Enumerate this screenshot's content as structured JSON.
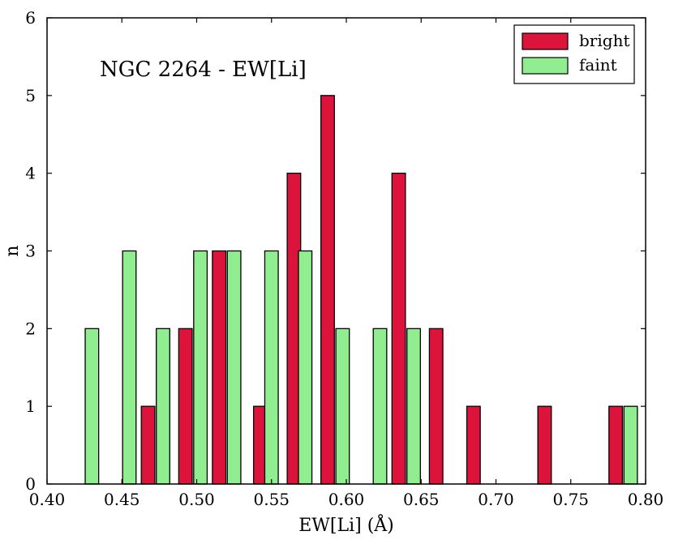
{
  "chart_data": {
    "type": "bar",
    "annotation": "NGC 2264 - EW[Li]",
    "xlabel": "EW[Li] (Å)",
    "ylabel": "n",
    "xlim": [
      0.4,
      0.8
    ],
    "ylim": [
      0,
      6
    ],
    "xticks": [
      "0.40",
      "0.45",
      "0.50",
      "0.55",
      "0.60",
      "0.65",
      "0.70",
      "0.75",
      "0.80"
    ],
    "yticks": [
      "0",
      "1",
      "2",
      "3",
      "4",
      "5",
      "6"
    ],
    "grid": false,
    "legend_position": "top-right",
    "bin_width": 0.025,
    "series": [
      {
        "name": "bright",
        "color": "#dc143c",
        "bars": [
          {
            "x": 0.4675,
            "value": 1
          },
          {
            "x": 0.4925,
            "value": 2
          },
          {
            "x": 0.515,
            "value": 3
          },
          {
            "x": 0.5425,
            "value": 1
          },
          {
            "x": 0.565,
            "value": 4
          },
          {
            "x": 0.5875,
            "value": 5
          },
          {
            "x": 0.635,
            "value": 4
          },
          {
            "x": 0.66,
            "value": 2
          },
          {
            "x": 0.685,
            "value": 1
          },
          {
            "x": 0.7325,
            "value": 1
          },
          {
            "x": 0.78,
            "value": 1
          }
        ]
      },
      {
        "name": "faint",
        "color": "#90ee90",
        "bars": [
          {
            "x": 0.43,
            "value": 2
          },
          {
            "x": 0.455,
            "value": 3
          },
          {
            "x": 0.4775,
            "value": 2
          },
          {
            "x": 0.5025,
            "value": 3
          },
          {
            "x": 0.525,
            "value": 3
          },
          {
            "x": 0.55,
            "value": 3
          },
          {
            "x": 0.5725,
            "value": 3
          },
          {
            "x": 0.5975,
            "value": 2
          },
          {
            "x": 0.6225,
            "value": 2
          },
          {
            "x": 0.645,
            "value": 2
          },
          {
            "x": 0.79,
            "value": 1
          }
        ]
      }
    ]
  }
}
